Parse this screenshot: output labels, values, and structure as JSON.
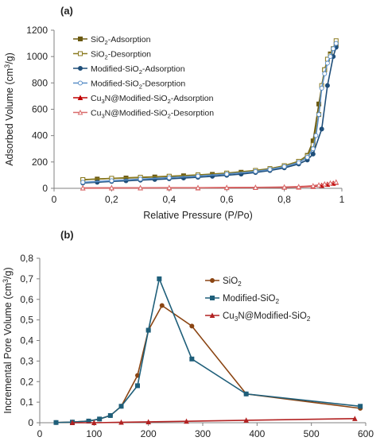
{
  "figure": {
    "panel_a_label": "(a)",
    "panel_b_label": "(b)"
  },
  "chart_data": [
    {
      "type": "line",
      "panel": "(a)",
      "xlabel": "Relative Pressure (P/Po)",
      "ylabel_parts": [
        "Adsorbed Volume (cm",
        "3",
        "/g)"
      ],
      "xlim": [
        0,
        1
      ],
      "ylim": [
        0,
        1200
      ],
      "x_ticks": [
        "0",
        "0,2",
        "0,4",
        "0,6",
        "0,8",
        "1"
      ],
      "y_ticks": [
        "0",
        "200",
        "400",
        "600",
        "800",
        "1000",
        "1200"
      ],
      "grid": false,
      "legend_position": "top-left",
      "series": [
        {
          "name_parts": [
            "SiO",
            "2",
            "-Adsorption"
          ],
          "color": "#6b5a10",
          "marker": "square",
          "filled": true,
          "x": [
            0.1,
            0.15,
            0.2,
            0.25,
            0.3,
            0.35,
            0.4,
            0.45,
            0.5,
            0.55,
            0.6,
            0.65,
            0.7,
            0.75,
            0.8,
            0.85,
            0.88,
            0.9,
            0.92,
            0.94,
            0.96,
            0.98
          ],
          "y": [
            65,
            70,
            75,
            78,
            82,
            86,
            90,
            95,
            100,
            106,
            113,
            122,
            133,
            148,
            170,
            205,
            250,
            360,
            640,
            900,
            1020,
            1090
          ]
        },
        {
          "name_parts": [
            "SiO",
            "2",
            "-Desorption"
          ],
          "color": "#8a7a20",
          "marker": "square",
          "filled": false,
          "x": [
            0.98,
            0.97,
            0.96,
            0.95,
            0.94,
            0.93,
            0.92,
            0.9,
            0.88,
            0.85,
            0.8,
            0.75,
            0.7,
            0.6,
            0.5,
            0.4,
            0.3,
            0.2,
            0.1
          ],
          "y": [
            1120,
            1060,
            1010,
            980,
            900,
            780,
            560,
            330,
            245,
            205,
            172,
            150,
            136,
            116,
            102,
            92,
            84,
            76,
            66
          ]
        },
        {
          "name_parts": [
            "Modified-SiO",
            "2",
            "-Adsorption"
          ],
          "color": "#1f4e79",
          "marker": "circle",
          "filled": true,
          "x": [
            0.1,
            0.15,
            0.2,
            0.25,
            0.3,
            0.35,
            0.4,
            0.45,
            0.5,
            0.55,
            0.6,
            0.65,
            0.7,
            0.75,
            0.8,
            0.85,
            0.88,
            0.9,
            0.93,
            0.95,
            0.97,
            0.98
          ],
          "y": [
            40,
            46,
            52,
            57,
            62,
            67,
            72,
            78,
            84,
            91,
            99,
            108,
            120,
            135,
            155,
            185,
            215,
            260,
            450,
            780,
            1000,
            1070
          ]
        },
        {
          "name_parts": [
            "Modified-SiO",
            "2",
            "-Desorption"
          ],
          "color": "#5b8fc7",
          "marker": "circle",
          "filled": false,
          "x": [
            0.98,
            0.97,
            0.96,
            0.95,
            0.94,
            0.93,
            0.92,
            0.91,
            0.9,
            0.88,
            0.85,
            0.8,
            0.75,
            0.7,
            0.6,
            0.5,
            0.4,
            0.3,
            0.2,
            0.1
          ],
          "y": [
            1100,
            1060,
            1000,
            950,
            870,
            760,
            560,
            400,
            300,
            235,
            195,
            165,
            143,
            128,
            108,
            93,
            81,
            70,
            58,
            46
          ]
        },
        {
          "name_parts": [
            "Cu",
            "3",
            "N@Modified-SiO",
            "2",
            "-Adsorption"
          ],
          "color": "#c00000",
          "marker": "triangle",
          "filled": true,
          "x": [
            0.1,
            0.2,
            0.3,
            0.4,
            0.5,
            0.6,
            0.7,
            0.8,
            0.85,
            0.9,
            0.93,
            0.95,
            0.97,
            0.98
          ],
          "y": [
            2,
            3,
            3,
            4,
            4,
            5,
            6,
            8,
            10,
            15,
            22,
            30,
            38,
            45
          ]
        },
        {
          "name_parts": [
            "Cu",
            "3",
            "N@Modified-SiO",
            "2",
            "-Desorption"
          ],
          "color": "#d96b6b",
          "marker": "triangle",
          "filled": false,
          "x": [
            0.98,
            0.96,
            0.94,
            0.92,
            0.9,
            0.85,
            0.8,
            0.7,
            0.6,
            0.5,
            0.4,
            0.3,
            0.2,
            0.1
          ],
          "y": [
            48,
            40,
            33,
            26,
            20,
            13,
            10,
            7,
            6,
            5,
            5,
            4,
            4,
            3
          ]
        }
      ]
    },
    {
      "type": "line",
      "panel": "(b)",
      "xlabel": "Average Pore Diameter (Å)",
      "ylabel_parts": [
        "Incremental Pore Volume (cm",
        "3",
        "/g)"
      ],
      "xlim": [
        0,
        600
      ],
      "ylim": [
        0,
        0.8
      ],
      "x_ticks": [
        "0",
        "100",
        "200",
        "300",
        "400",
        "500",
        "600"
      ],
      "y_ticks": [
        "0",
        "0,1",
        "0,2",
        "0,3",
        "0,4",
        "0,5",
        "0,6",
        "0,7",
        "0,8"
      ],
      "grid": false,
      "legend_position": "top-right",
      "series": [
        {
          "name_parts": [
            "SiO",
            "2"
          ],
          "color": "#8b4513",
          "marker": "circle",
          "filled": true,
          "x": [
            30,
            60,
            90,
            110,
            130,
            150,
            180,
            200,
            225,
            280,
            380,
            590
          ],
          "y": [
            0.001,
            0.003,
            0.008,
            0.018,
            0.035,
            0.08,
            0.23,
            0.45,
            0.57,
            0.47,
            0.14,
            0.07
          ]
        },
        {
          "name_parts": [
            "Modified-SiO",
            "2"
          ],
          "color": "#1f5f7a",
          "marker": "square",
          "filled": true,
          "x": [
            30,
            60,
            90,
            110,
            130,
            150,
            180,
            200,
            220,
            280,
            380,
            590
          ],
          "y": [
            0.001,
            0.003,
            0.008,
            0.018,
            0.035,
            0.08,
            0.18,
            0.45,
            0.7,
            0.31,
            0.14,
            0.08
          ]
        },
        {
          "name_parts": [
            "Cu",
            "3",
            "N@Modified-SiO",
            "2"
          ],
          "color": "#b22222",
          "marker": "triangle",
          "filled": true,
          "x": [
            60,
            100,
            150,
            200,
            270,
            380,
            580
          ],
          "y": [
            0.0,
            0.0,
            0.002,
            0.004,
            0.007,
            0.012,
            0.02
          ]
        }
      ]
    }
  ]
}
